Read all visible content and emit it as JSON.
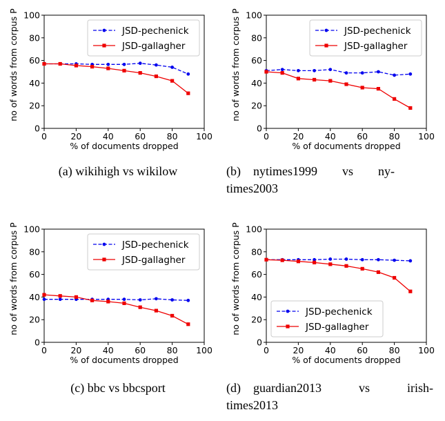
{
  "chart_data": [
    {
      "type": "line",
      "caption": "(a) wikihigh vs wikilow",
      "xlabel": "% of documents dropped",
      "ylabel": "no of words from corpus P",
      "xlim": [
        0,
        100
      ],
      "ylim": [
        0,
        100
      ],
      "xticks": [
        "0",
        "20",
        "40",
        "60",
        "80",
        "100"
      ],
      "yticks": [
        "0",
        "20",
        "40",
        "60",
        "80",
        "100"
      ],
      "legend_position": "upper right",
      "x": [
        0,
        10,
        20,
        30,
        40,
        50,
        60,
        70,
        80,
        90
      ],
      "series": [
        {
          "name": "JSD-pechenick",
          "color": "#0000ee",
          "style": "dashed",
          "marker": "circle",
          "values": [
            57,
            57,
            57,
            56.5,
            56.5,
            56.5,
            57.5,
            56,
            54,
            48
          ]
        },
        {
          "name": "JSD-gallagher",
          "color": "#ee0000",
          "style": "solid",
          "marker": "square",
          "values": [
            57,
            57,
            55.5,
            54.5,
            53,
            51,
            49,
            46,
            42,
            31
          ]
        }
      ]
    },
    {
      "type": "line",
      "caption": "(b) nytimes1999 vs nytimes2003",
      "caption_lines": [
        "(b) nytimes1999  vs  ny-",
        "times2003"
      ],
      "xlabel": "% of documents dropped",
      "ylabel": "no of words from corpus P",
      "xlim": [
        0,
        100
      ],
      "ylim": [
        0,
        100
      ],
      "xticks": [
        "0",
        "20",
        "40",
        "60",
        "80",
        "100"
      ],
      "yticks": [
        "0",
        "20",
        "40",
        "60",
        "80",
        "100"
      ],
      "legend_position": "upper right",
      "x": [
        0,
        10,
        20,
        30,
        40,
        50,
        60,
        70,
        80,
        90
      ],
      "series": [
        {
          "name": "JSD-pechenick",
          "color": "#0000ee",
          "style": "dashed",
          "marker": "circle",
          "values": [
            51,
            52,
            51,
            51,
            52,
            49,
            49,
            50,
            47,
            48
          ]
        },
        {
          "name": "JSD-gallagher",
          "color": "#ee0000",
          "style": "solid",
          "marker": "square",
          "values": [
            50,
            49,
            44,
            43,
            42,
            39,
            36,
            35,
            26,
            18
          ]
        }
      ]
    },
    {
      "type": "line",
      "caption": "(c) bbc vs bbcsport",
      "xlabel": "% of documents dropped",
      "ylabel": "no of words from corpus P",
      "xlim": [
        0,
        100
      ],
      "ylim": [
        0,
        100
      ],
      "xticks": [
        "0",
        "20",
        "40",
        "60",
        "80",
        "100"
      ],
      "yticks": [
        "0",
        "20",
        "40",
        "60",
        "80",
        "100"
      ],
      "legend_position": "upper right",
      "x": [
        0,
        10,
        20,
        30,
        40,
        50,
        60,
        70,
        80,
        90
      ],
      "series": [
        {
          "name": "JSD-pechenick",
          "color": "#0000ee",
          "style": "dashed",
          "marker": "circle",
          "values": [
            38,
            38,
            38,
            38,
            38,
            38,
            37.5,
            38.5,
            37.5,
            37
          ]
        },
        {
          "name": "JSD-gallagher",
          "color": "#ee0000",
          "style": "solid",
          "marker": "square",
          "values": [
            42,
            41,
            40,
            37,
            36,
            34.5,
            31,
            28,
            23.5,
            16
          ]
        }
      ]
    },
    {
      "type": "line",
      "caption": "(d) guardian2013 vs irishtimes2013",
      "caption_lines": [
        "(d) guardian2013   vs   irish-",
        "times2013"
      ],
      "xlabel": "% of documents dropped",
      "ylabel": "no of words from corpus P",
      "xlim": [
        0,
        100
      ],
      "ylim": [
        0,
        100
      ],
      "xticks": [
        "0",
        "20",
        "40",
        "60",
        "80",
        "100"
      ],
      "yticks": [
        "0",
        "20",
        "40",
        "60",
        "80",
        "100"
      ],
      "legend_position": "lower left",
      "x": [
        0,
        10,
        20,
        30,
        40,
        50,
        60,
        70,
        80,
        90
      ],
      "series": [
        {
          "name": "JSD-pechenick",
          "color": "#0000ee",
          "style": "dashed",
          "marker": "circle",
          "values": [
            73,
            73,
            73,
            73,
            73.5,
            73.5,
            73,
            73,
            72.5,
            72
          ]
        },
        {
          "name": "JSD-gallagher",
          "color": "#ee0000",
          "style": "solid",
          "marker": "square",
          "values": [
            73,
            72.5,
            71.5,
            70.5,
            69,
            67.5,
            65,
            62,
            57,
            45
          ]
        }
      ]
    }
  ]
}
